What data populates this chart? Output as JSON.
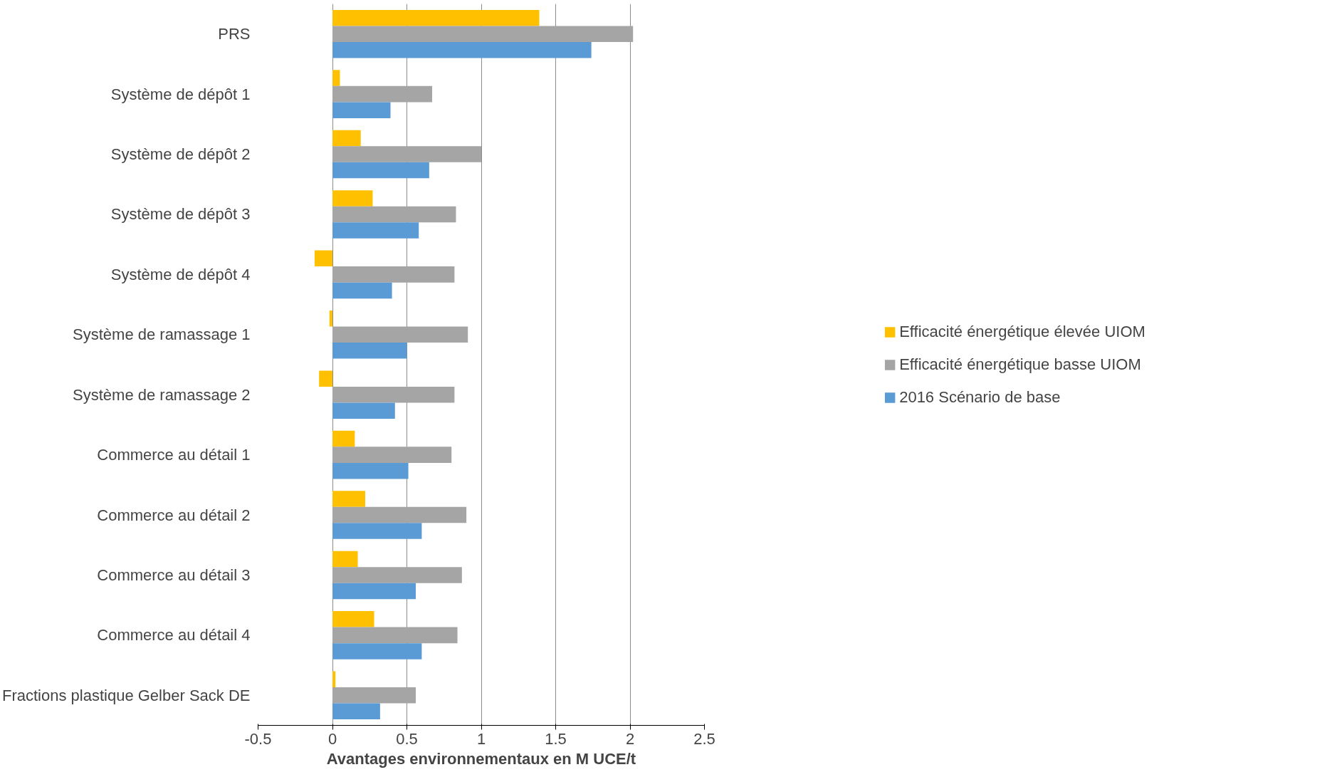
{
  "chart_data": {
    "type": "bar",
    "orientation": "horizontal",
    "xlabel": "Avantages environnementaux en M UCE/t",
    "categories": [
      "PRS",
      "Système de dépôt 1",
      "Système de dépôt 2",
      "Système de dépôt 3",
      "Système de dépôt 4",
      "Système de ramassage 1",
      "Système de ramassage 2",
      "Commerce au détail 1",
      "Commerce au détail 2",
      "Commerce au détail 3",
      "Commerce au détail 4",
      "Fractions plastique Gelber Sack DE"
    ],
    "series": [
      {
        "name": "Efficacité énergétique élevée UIOM",
        "color": "#ffc000",
        "values": [
          1.39,
          0.05,
          0.19,
          0.27,
          -0.12,
          -0.02,
          -0.09,
          0.15,
          0.22,
          0.17,
          0.28,
          0.02
        ]
      },
      {
        "name": "Efficacité énergétique basse UIOM",
        "color": "#a5a5a5",
        "values": [
          2.02,
          0.67,
          1.0,
          0.83,
          0.82,
          0.91,
          0.82,
          0.8,
          0.9,
          0.87,
          0.84,
          0.56
        ]
      },
      {
        "name": "2016 Scénario de base",
        "color": "#5b9bd5",
        "values": [
          1.74,
          0.39,
          0.65,
          0.58,
          0.4,
          0.5,
          0.42,
          0.51,
          0.6,
          0.56,
          0.6,
          0.32
        ]
      }
    ],
    "xlim": [
      -0.5,
      2.5
    ],
    "xticks": [
      -0.5,
      0,
      0.5,
      1,
      1.5,
      2,
      2.5
    ],
    "grid": "x",
    "legend": "right"
  }
}
